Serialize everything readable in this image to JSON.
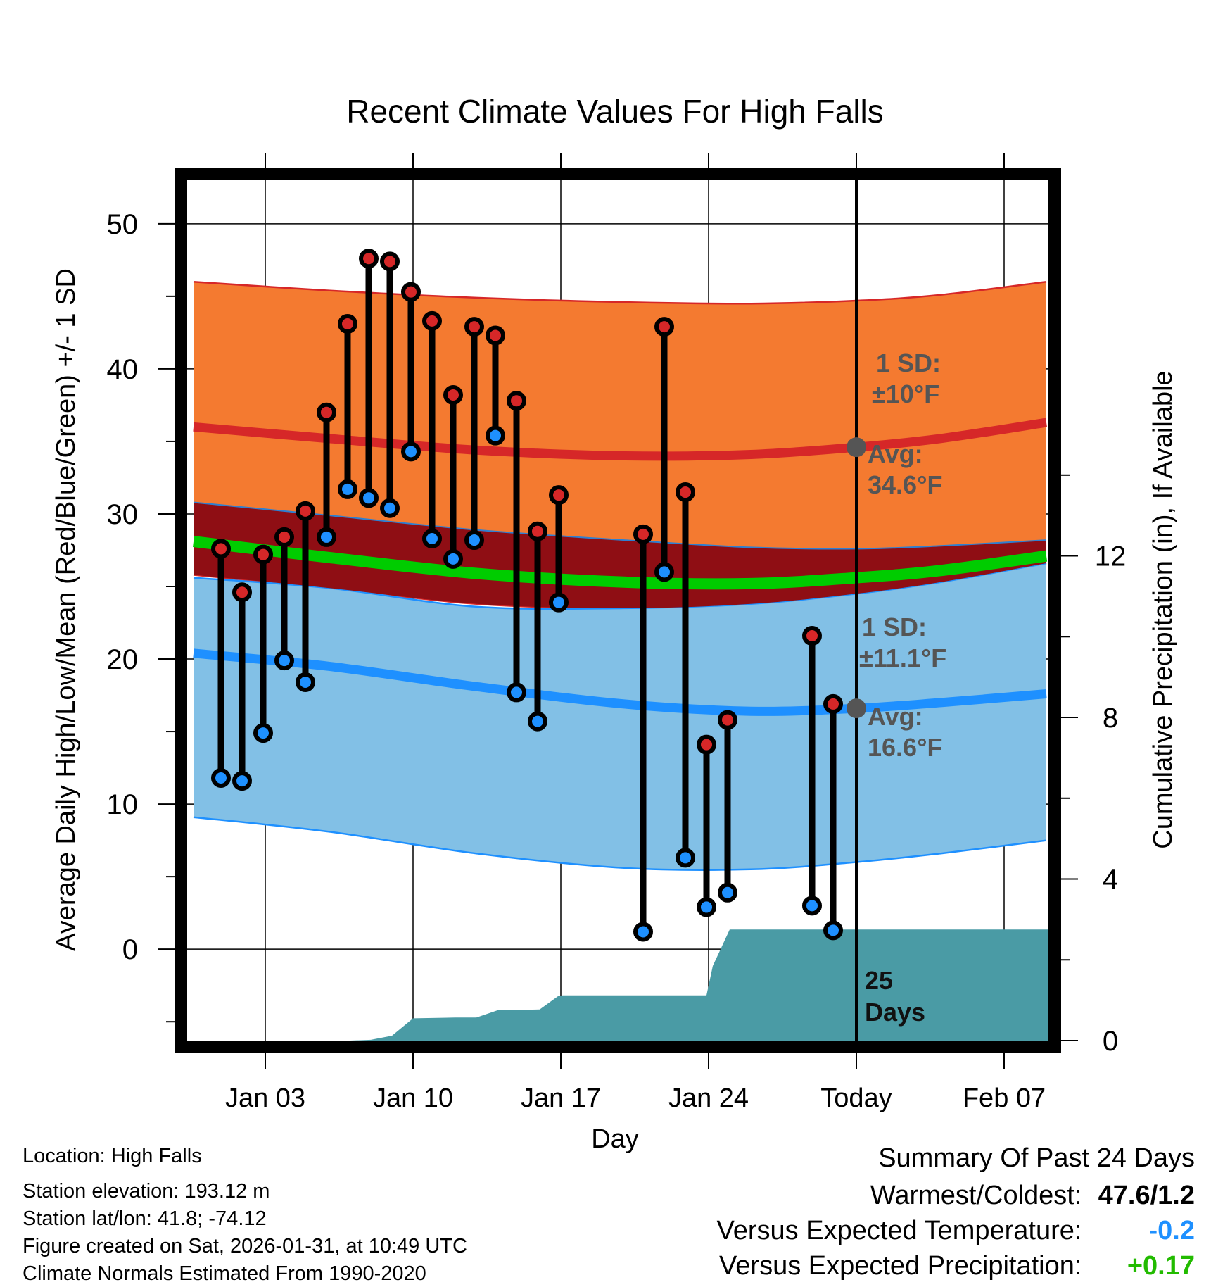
{
  "chart_data": {
    "type": "line",
    "title": "Recent Climate Values For High Falls",
    "xlabel": "Day",
    "ylabel": "Average Daily High/Low/Mean (Red/Blue/Green) +/- 1 SD",
    "y2label": "Cumulative Precipitation (in), If Available",
    "xlim": [
      -1.7,
      39.1
    ],
    "ylim": [
      -6.3,
      53
    ],
    "y2lim": [
      0,
      21.3
    ],
    "x_ticks": [
      2,
      9,
      16,
      23,
      30,
      37
    ],
    "x_tick_labels": [
      "Jan 03",
      "Jan 10",
      "Jan 17",
      "Jan 24",
      "Today",
      "Feb 07"
    ],
    "y_ticks": [
      0,
      10,
      20,
      30,
      40,
      50
    ],
    "y_tick_labels": [
      "0",
      "10",
      "20",
      "30",
      "40",
      "50"
    ],
    "y2_ticks": [
      0,
      4,
      8,
      12
    ],
    "y2_tick_labels": [
      "0",
      "4",
      "8",
      "12"
    ],
    "today_x": 30,
    "days_label": [
      "25",
      "Days"
    ],
    "normals": {
      "x": [
        -1.4,
        5,
        12,
        19,
        25,
        30,
        34,
        39
      ],
      "high_avg": [
        36.0,
        35.2,
        34.4,
        34.0,
        34.1,
        34.6,
        35.2,
        36.3
      ],
      "high_upper": [
        46.0,
        45.4,
        44.9,
        44.6,
        44.5,
        44.7,
        45.1,
        46.0
      ],
      "high_lower": [
        25.8,
        24.9,
        23.8,
        23.5,
        23.8,
        24.5,
        25.3,
        26.6
      ],
      "mean_avg": [
        28.1,
        27.0,
        25.9,
        25.3,
        25.2,
        25.6,
        26.1,
        27.1
      ],
      "mean_upper": [
        30.8,
        29.9,
        28.9,
        28.2,
        27.7,
        27.6,
        27.8,
        28.2
      ],
      "low_avg": [
        20.4,
        19.5,
        18.1,
        16.9,
        16.4,
        16.6,
        17.0,
        17.6
      ],
      "low_upper": [
        25.6,
        24.9,
        23.6,
        23.5,
        23.8,
        24.5,
        25.3,
        26.6
      ],
      "low_lower": [
        9.1,
        8.1,
        6.6,
        5.6,
        5.5,
        6.0,
        6.6,
        7.5
      ],
      "high_sd_label": [
        "1 SD:",
        "±10°F"
      ],
      "high_avg_label": [
        "Avg:",
        "34.6°F"
      ],
      "low_sd_label": [
        "1 SD:",
        "±11.1°F"
      ],
      "low_avg_label": [
        "Avg:",
        "16.6°F"
      ],
      "high_avg_value": 34.6,
      "low_avg_value": 16.6
    },
    "series": [
      {
        "name": "Daily High",
        "color": "#d62728",
        "x": [
          -0.1,
          0.9,
          1.9,
          2.9,
          3.9,
          4.9,
          5.9,
          6.9,
          7.9,
          8.9,
          9.9,
          10.9,
          11.9,
          12.9,
          13.9,
          14.9,
          15.9,
          19.9,
          20.9,
          21.9,
          22.9,
          23.9,
          27.9,
          28.9
        ],
        "values": [
          27.6,
          24.6,
          27.2,
          28.4,
          30.2,
          37.0,
          43.1,
          47.6,
          47.4,
          45.3,
          43.3,
          38.2,
          42.9,
          42.3,
          37.8,
          28.8,
          31.3,
          28.6,
          42.9,
          31.5,
          14.1,
          15.8,
          21.6,
          16.9
        ]
      },
      {
        "name": "Daily Low",
        "color": "#1e90ff",
        "x": [
          -0.1,
          0.9,
          1.9,
          2.9,
          3.9,
          4.9,
          5.9,
          6.9,
          7.9,
          8.9,
          9.9,
          10.9,
          11.9,
          12.9,
          13.9,
          14.9,
          15.9,
          19.9,
          20.9,
          21.9,
          22.9,
          23.9,
          27.9,
          28.9
        ],
        "values": [
          11.8,
          11.6,
          14.9,
          19.9,
          18.4,
          28.4,
          31.7,
          31.1,
          30.4,
          34.3,
          28.3,
          26.9,
          28.2,
          35.4,
          17.7,
          15.7,
          23.9,
          1.2,
          26.0,
          6.3,
          2.9,
          3.9,
          3.0,
          1.3
        ]
      },
      {
        "name": "Cumulative Precipitation",
        "color": "#4a9ba5",
        "x": [
          -1.4,
          6.0,
          7.0,
          8.0,
          9.0,
          11.0,
          12.0,
          13.0,
          15.0,
          15.9,
          16.1,
          22.9,
          23.2,
          24.0,
          39.1
        ],
        "values": [
          0,
          0,
          0.02,
          0.12,
          0.55,
          0.57,
          0.57,
          0.75,
          0.77,
          1.11,
          1.12,
          1.12,
          1.85,
          2.75,
          2.75
        ]
      }
    ]
  },
  "station_info": [
    "Location: High Falls",
    "Station elevation: 193.12 m",
    "Station lat/lon: 41.8; -74.12",
    "Figure created on Sat, 2026-01-31, at 10:49 UTC",
    "Climate Normals Estimated From 1990-2020"
  ],
  "summary": {
    "title": "Summary Of Past 24 Days",
    "rows": [
      {
        "label": "Warmest/Coldest:",
        "value": "47.6/1.2",
        "color": "#000000"
      },
      {
        "label": "Versus Expected Temperature:",
        "value": "-0.2",
        "color": "#1e90ff"
      },
      {
        "label": "Versus Expected Precipitation:",
        "value": "+0.17",
        "color": "#22bb00"
      }
    ]
  },
  "colors": {
    "high_band": "#f47a30",
    "high_avg_line": "#d62728",
    "mean_band": "#8f0e14",
    "mean_line": "#00cc00",
    "low_band": "#82c0e6",
    "low_avg_line": "#1e90ff",
    "precip": "#4a9ba5",
    "annotation": "#555555"
  }
}
